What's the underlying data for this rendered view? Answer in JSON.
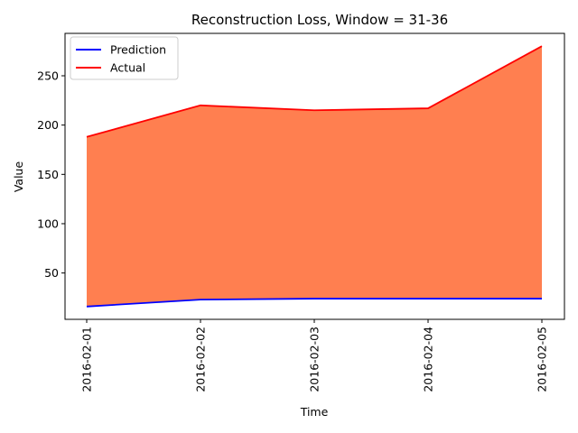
{
  "chart_data": {
    "type": "area",
    "title": "Reconstruction Loss, Window = 31-36",
    "xlabel": "Time",
    "ylabel": "Value",
    "x": [
      "2016-02-01",
      "2016-02-02",
      "2016-02-03",
      "2016-02-04",
      "2016-02-05"
    ],
    "series": [
      {
        "name": "Prediction",
        "color": "#0000ff",
        "values": [
          16,
          23,
          24,
          24,
          24
        ]
      },
      {
        "name": "Actual",
        "color": "#ff0000",
        "values": [
          188,
          220,
          215,
          217,
          280
        ]
      }
    ],
    "fill_between": {
      "color": "#ff7f50",
      "from_series": "Prediction",
      "to_series": "Actual"
    },
    "yticks": [
      50,
      100,
      150,
      200,
      250
    ],
    "ylim": [
      3,
      293
    ],
    "grid": false,
    "legend": "upper-left"
  }
}
